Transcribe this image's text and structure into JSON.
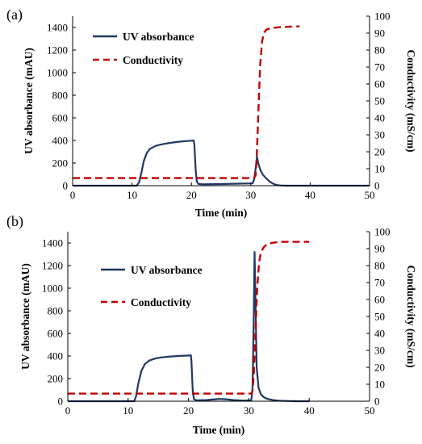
{
  "colors": {
    "uv": "#1f3864",
    "conductivity": "#c00000",
    "axis": "#000000"
  },
  "chart_data": [
    {
      "panel_label": "(a)",
      "type": "line",
      "xlabel": "Time (min)",
      "ylabel_left": "UV absorbance (mAU)",
      "ylabel_right": "Conductivity (mS/cm)",
      "xlim": [
        0,
        50
      ],
      "ylim_left": [
        0,
        1500
      ],
      "ylim_right": [
        0,
        100
      ],
      "x_ticks": [
        "0",
        "10",
        "20",
        "30",
        "40",
        "50"
      ],
      "y_ticks_left": [
        "0",
        "200",
        "400",
        "600",
        "800",
        "1000",
        "1200",
        "1400"
      ],
      "y_ticks_right": [
        "0",
        "10",
        "20",
        "30",
        "40",
        "50",
        "60",
        "70",
        "80",
        "90",
        "100"
      ],
      "grid": false,
      "legend_position": "top-left",
      "series": [
        {
          "name": "UV absorbance",
          "axis": "left",
          "style": "solid",
          "points": [
            [
              0,
              0
            ],
            [
              10.8,
              0
            ],
            [
              11.2,
              30
            ],
            [
              11.6,
              120
            ],
            [
              12,
              220
            ],
            [
              12.5,
              290
            ],
            [
              13,
              325
            ],
            [
              14,
              352
            ],
            [
              15,
              366
            ],
            [
              16,
              375
            ],
            [
              17,
              383
            ],
            [
              18,
              389
            ],
            [
              19,
              394
            ],
            [
              20,
              398
            ],
            [
              20.4,
              400
            ],
            [
              20.5,
              360
            ],
            [
              20.7,
              150
            ],
            [
              20.9,
              40
            ],
            [
              21.2,
              15
            ],
            [
              22,
              12
            ],
            [
              25,
              14
            ],
            [
              28,
              18
            ],
            [
              30.3,
              20
            ],
            [
              30.6,
              60
            ],
            [
              30.9,
              185
            ],
            [
              31.05,
              255
            ],
            [
              31.25,
              200
            ],
            [
              31.6,
              140
            ],
            [
              32,
              100
            ],
            [
              32.5,
              70
            ],
            [
              33,
              45
            ],
            [
              33.5,
              25
            ],
            [
              34,
              12
            ],
            [
              34.5,
              5
            ],
            [
              35,
              2
            ],
            [
              36,
              0
            ],
            [
              50,
              0
            ]
          ]
        },
        {
          "name": "Conductivity",
          "axis": "right",
          "style": "dashed",
          "points": [
            [
              0,
              4.5
            ],
            [
              30.5,
              4.5
            ],
            [
              30.8,
              6
            ],
            [
              30.9,
              10
            ],
            [
              31,
              18
            ],
            [
              31.2,
              35
            ],
            [
              31.4,
              55
            ],
            [
              31.6,
              72
            ],
            [
              31.9,
              85
            ],
            [
              32.2,
              90
            ],
            [
              32.6,
              92
            ],
            [
              33.5,
              93
            ],
            [
              35,
              93.5
            ],
            [
              38.2,
              94
            ]
          ]
        }
      ]
    },
    {
      "panel_label": "(b)",
      "type": "line",
      "xlabel": "Time (min)",
      "ylabel_left": "UV absorbance (mAU)",
      "ylabel_right": "Conductivity (mS/cm)",
      "xlim": [
        0,
        50
      ],
      "ylim_left": [
        0,
        1500
      ],
      "ylim_right": [
        0,
        100
      ],
      "x_ticks": [
        "0",
        "10",
        "20",
        "30",
        "40",
        "50"
      ],
      "y_ticks_left": [
        "0",
        "200",
        "400",
        "600",
        "800",
        "1000",
        "1200",
        "1400"
      ],
      "y_ticks_right": [
        "0",
        "10",
        "20",
        "30",
        "40",
        "50",
        "60",
        "70",
        "80",
        "90",
        "100"
      ],
      "grid": false,
      "legend_position": "top-left",
      "series": [
        {
          "name": "UV absorbance",
          "axis": "left",
          "style": "solid",
          "points": [
            [
              0,
              0
            ],
            [
              11,
              0
            ],
            [
              11.3,
              40
            ],
            [
              11.7,
              160
            ],
            [
              12.2,
              270
            ],
            [
              12.8,
              330
            ],
            [
              13.5,
              360
            ],
            [
              14.5,
              378
            ],
            [
              15.5,
              388
            ],
            [
              17,
              396
            ],
            [
              18.5,
              401
            ],
            [
              20,
              404
            ],
            [
              20.4,
              406
            ],
            [
              20.5,
              350
            ],
            [
              20.7,
              100
            ],
            [
              20.9,
              20
            ],
            [
              21.3,
              8
            ],
            [
              23,
              10
            ],
            [
              24,
              15
            ],
            [
              25,
              20
            ],
            [
              26,
              18
            ],
            [
              27.5,
              10
            ],
            [
              29,
              6
            ],
            [
              30.4,
              8
            ],
            [
              30.6,
              100
            ],
            [
              30.8,
              700
            ],
            [
              30.95,
              1320
            ],
            [
              31.1,
              900
            ],
            [
              31.3,
              300
            ],
            [
              31.6,
              120
            ],
            [
              32,
              60
            ],
            [
              32.5,
              35
            ],
            [
              33,
              22
            ],
            [
              34,
              10
            ],
            [
              35,
              4
            ],
            [
              36,
              2
            ],
            [
              38,
              0
            ],
            [
              40,
              0
            ]
          ]
        },
        {
          "name": "Conductivity",
          "axis": "right",
          "style": "dashed",
          "points": [
            [
              0,
              4.5
            ],
            [
              30.4,
              4.5
            ],
            [
              30.6,
              6
            ],
            [
              30.8,
              15
            ],
            [
              31,
              30
            ],
            [
              31.2,
              50
            ],
            [
              31.4,
              68
            ],
            [
              31.7,
              82
            ],
            [
              32,
              88
            ],
            [
              32.5,
              91
            ],
            [
              33.2,
              93
            ],
            [
              35,
              94
            ],
            [
              38,
              94
            ],
            [
              40,
              94
            ]
          ]
        }
      ]
    }
  ]
}
